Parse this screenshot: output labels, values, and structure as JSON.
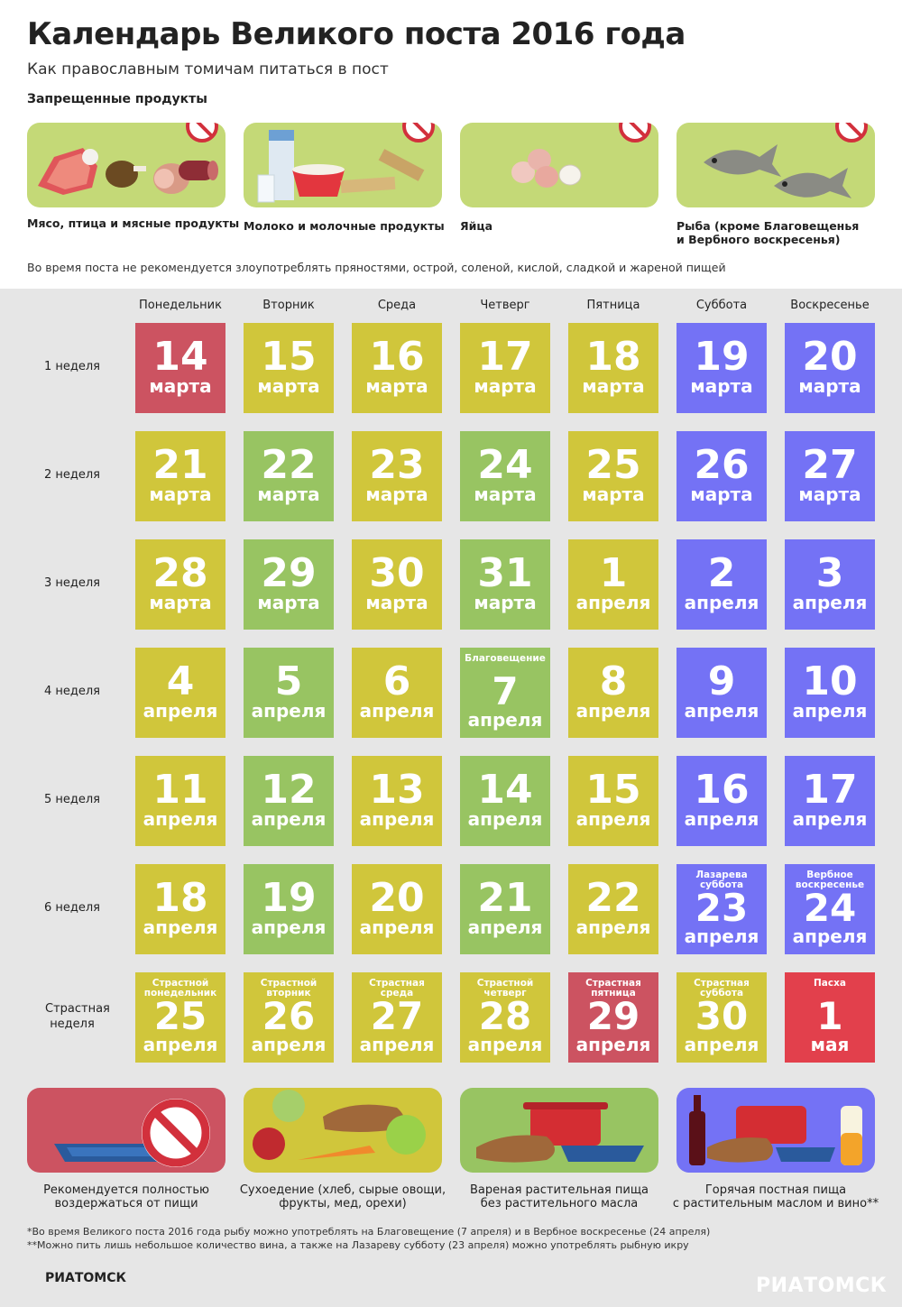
{
  "title": "Календарь Великого поста 2016 года",
  "subtitle": "Как православным томичам питаться в пост",
  "forbidden": {
    "heading": "Запрещенные продукты",
    "items": [
      {
        "label": "Мясо, птица и мясные продукты",
        "icon": "meat-icon"
      },
      {
        "label": "Молоко и молочные продукты",
        "icon": "milk-icon"
      },
      {
        "label": "Яйца",
        "icon": "eggs-icon"
      },
      {
        "label_line1": "Рыба (кроме Благовещенья",
        "label_line2": "и Вербного воскресенья)",
        "icon": "fish-icon"
      }
    ]
  },
  "note": "Во время поста не рекомендуется злоупотреблять пряностями, острой, соленой, кислой, сладкой и жареной пищей",
  "days": [
    "Понедельник",
    "Вторник",
    "Среда",
    "Четверг",
    "Пятница",
    "Суббота",
    "Воскресенье"
  ],
  "colors": {
    "abstain": "#cc5361",
    "dry": "#d0c63b",
    "boiled": "#98c462",
    "hot": "#7472f5",
    "easter": "#e2404c"
  },
  "weeks": [
    {
      "label": "1 неделя",
      "cells": [
        {
          "n": "14",
          "m": "марта",
          "t": "abstain"
        },
        {
          "n": "15",
          "m": "марта",
          "t": "dry"
        },
        {
          "n": "16",
          "m": "марта",
          "t": "dry"
        },
        {
          "n": "17",
          "m": "марта",
          "t": "dry"
        },
        {
          "n": "18",
          "m": "марта",
          "t": "dry"
        },
        {
          "n": "19",
          "m": "марта",
          "t": "hot"
        },
        {
          "n": "20",
          "m": "марта",
          "t": "hot"
        }
      ]
    },
    {
      "label": "2 неделя",
      "cells": [
        {
          "n": "21",
          "m": "марта",
          "t": "dry"
        },
        {
          "n": "22",
          "m": "марта",
          "t": "boiled"
        },
        {
          "n": "23",
          "m": "марта",
          "t": "dry"
        },
        {
          "n": "24",
          "m": "марта",
          "t": "boiled"
        },
        {
          "n": "25",
          "m": "марта",
          "t": "dry"
        },
        {
          "n": "26",
          "m": "марта",
          "t": "hot"
        },
        {
          "n": "27",
          "m": "марта",
          "t": "hot"
        }
      ]
    },
    {
      "label": "3 неделя",
      "cells": [
        {
          "n": "28",
          "m": "марта",
          "t": "dry"
        },
        {
          "n": "29",
          "m": "марта",
          "t": "boiled"
        },
        {
          "n": "30",
          "m": "марта",
          "t": "dry"
        },
        {
          "n": "31",
          "m": "марта",
          "t": "boiled"
        },
        {
          "n": "1",
          "m": "апреля",
          "t": "dry"
        },
        {
          "n": "2",
          "m": "апреля",
          "t": "hot"
        },
        {
          "n": "3",
          "m": "апреля",
          "t": "hot"
        }
      ]
    },
    {
      "label": "4 неделя",
      "cells": [
        {
          "n": "4",
          "m": "апреля",
          "t": "dry"
        },
        {
          "n": "5",
          "m": "апреля",
          "t": "boiled"
        },
        {
          "n": "6",
          "m": "апреля",
          "t": "dry"
        },
        {
          "n": "7",
          "m": "апреля",
          "t": "boiled",
          "cap": "Благовещение"
        },
        {
          "n": "8",
          "m": "апреля",
          "t": "dry"
        },
        {
          "n": "9",
          "m": "апреля",
          "t": "hot"
        },
        {
          "n": "10",
          "m": "апреля",
          "t": "hot"
        }
      ]
    },
    {
      "label": "5 неделя",
      "cells": [
        {
          "n": "11",
          "m": "апреля",
          "t": "dry"
        },
        {
          "n": "12",
          "m": "апреля",
          "t": "boiled"
        },
        {
          "n": "13",
          "m": "апреля",
          "t": "dry"
        },
        {
          "n": "14",
          "m": "апреля",
          "t": "boiled"
        },
        {
          "n": "15",
          "m": "апреля",
          "t": "dry"
        },
        {
          "n": "16",
          "m": "апреля",
          "t": "hot"
        },
        {
          "n": "17",
          "m": "апреля",
          "t": "hot"
        }
      ]
    },
    {
      "label": "6 неделя",
      "cells": [
        {
          "n": "18",
          "m": "апреля",
          "t": "dry"
        },
        {
          "n": "19",
          "m": "апреля",
          "t": "boiled"
        },
        {
          "n": "20",
          "m": "апреля",
          "t": "dry"
        },
        {
          "n": "21",
          "m": "апреля",
          "t": "boiled"
        },
        {
          "n": "22",
          "m": "апреля",
          "t": "dry"
        },
        {
          "n": "23",
          "m": "апреля",
          "t": "hot",
          "cap": "Лазарева суббота"
        },
        {
          "n": "24",
          "m": "апреля",
          "t": "hot",
          "cap": "Вербное воскресенье"
        }
      ]
    },
    {
      "label": "Страстная неделя",
      "cells": [
        {
          "n": "25",
          "m": "апреля",
          "t": "dry",
          "cap": "Страстной понедельник"
        },
        {
          "n": "26",
          "m": "апреля",
          "t": "dry",
          "cap": "Страстной вторник"
        },
        {
          "n": "27",
          "m": "апреля",
          "t": "dry",
          "cap": "Страстная среда"
        },
        {
          "n": "28",
          "m": "апреля",
          "t": "dry",
          "cap": "Страстной четверг"
        },
        {
          "n": "29",
          "m": "апреля",
          "t": "abstain",
          "cap": "Страстная пятница"
        },
        {
          "n": "30",
          "m": "апреля",
          "t": "dry",
          "cap": "Страстная суббота"
        },
        {
          "n": "1",
          "m": "мая",
          "t": "easter",
          "cap": "Пасха"
        }
      ]
    }
  ],
  "legend": [
    {
      "line1": "Рекомендуется полностью",
      "line2": "воздержаться от пищи",
      "icon": "ban-plate-icon",
      "color": "#cc5361"
    },
    {
      "line1": "Сухоедение (хлеб, сырые овощи,",
      "line2": "фрукты, мед, орехи)",
      "icon": "raw-food-icon",
      "color": "#d0c63b"
    },
    {
      "line1": "Вареная растительная пища",
      "line2": "без растительного масла",
      "icon": "boiled-food-icon",
      "color": "#98c462"
    },
    {
      "line1": "Горячая постная пища",
      "line2": "с растительным маслом и вино**",
      "icon": "hot-food-wine-icon",
      "color": "#7472f5"
    }
  ],
  "footnotes": [
    "*Во время Великого поста 2016 года рыбу можно употреблять на Благовещение (7 апреля) и в Вербное воскресенье (24 апреля)",
    "**Можно пить лишь небольшое количество вина, а также на Лазареву субботу (23 апреля) можно употреблять рыбную икру"
  ],
  "logo_left": "РИАТОМСК",
  "logo_right": "РИАТОМСК"
}
